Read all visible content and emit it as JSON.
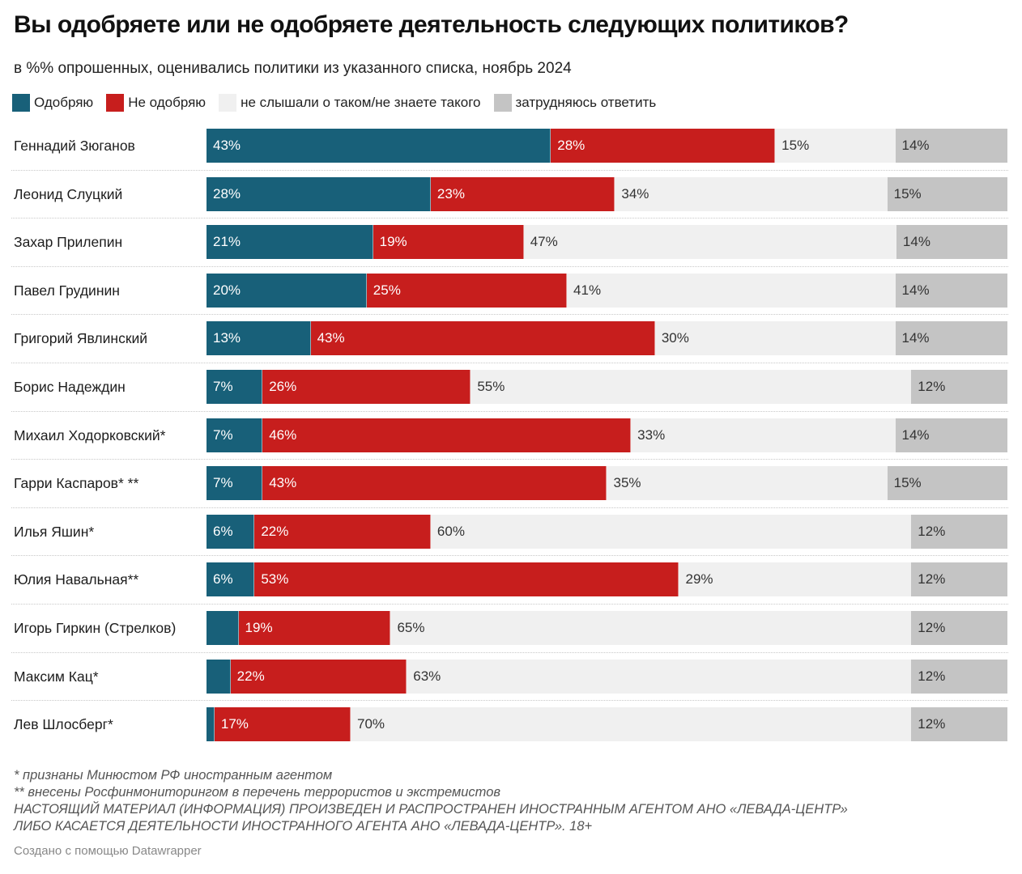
{
  "colors": {
    "approve": "#186079",
    "disapprove": "#c71e1d",
    "unknown": "#f0f0f0",
    "hard": "#c4c4c4"
  },
  "chart_data": {
    "type": "bar",
    "orientation": "horizontal",
    "stacked": true,
    "title": "Вы одобряете или не одобряете деятельность следующих политиков?",
    "subtitle": "в %% опрошенных, оценивались политики из указанного списка, ноябрь 2024",
    "unit": "%",
    "xlim": [
      0,
      100
    ],
    "legend_position": "top-left",
    "legend": [
      "Одобряю",
      "Не одобряю",
      "не слышали о таком/не знаете такого",
      "затрудняюсь ответить"
    ],
    "categories": [
      "Геннадий Зюганов",
      "Леонид Слуцкий",
      "Захар Прилепин",
      "Павел Грудинин",
      "Григорий Явлинский",
      "Борис Надеждин",
      "Михаил Ходорковский*",
      "Гарри Каспаров* **",
      "Илья Яшин*",
      "Юлия Навальная**",
      "Игорь Гиркин (Стрелков)",
      "Максим Кац*",
      "Лев Шлосберг*"
    ],
    "series": [
      {
        "name": "Одобряю",
        "key": "approve",
        "values": [
          43,
          28,
          21,
          20,
          13,
          7,
          7,
          7,
          6,
          6,
          4,
          3,
          1
        ],
        "labels_shown": [
          true,
          true,
          true,
          true,
          true,
          true,
          true,
          true,
          true,
          true,
          false,
          false,
          false
        ]
      },
      {
        "name": "Не одобряю",
        "key": "disapprove",
        "values": [
          28,
          23,
          19,
          25,
          43,
          26,
          46,
          43,
          22,
          53,
          19,
          22,
          17
        ],
        "labels_shown": [
          true,
          true,
          true,
          true,
          true,
          true,
          true,
          true,
          true,
          true,
          true,
          true,
          true
        ]
      },
      {
        "name": "не слышали о таком/не знаете такого",
        "key": "unknown",
        "values": [
          15,
          34,
          47,
          41,
          30,
          55,
          33,
          35,
          60,
          29,
          65,
          63,
          70
        ],
        "labels_shown": [
          true,
          true,
          true,
          true,
          true,
          true,
          true,
          true,
          true,
          true,
          true,
          true,
          true
        ]
      },
      {
        "name": "затрудняюсь ответить",
        "key": "hard",
        "values": [
          14,
          15,
          14,
          14,
          14,
          12,
          14,
          15,
          12,
          12,
          12,
          12,
          12
        ],
        "labels_shown": [
          true,
          true,
          true,
          true,
          true,
          true,
          true,
          true,
          true,
          true,
          true,
          true,
          true
        ]
      }
    ]
  },
  "footnotes": [
    "* признаны Минюстом РФ иностранным агентом",
    "** внесены Росфинмониторингом в перечень террористов и экстремистов",
    "НАСТОЯЩИЙ МАТЕРИАЛ (ИНФОРМАЦИЯ) ПРОИЗВЕДЕН И РАСПРОСТРАНЕН ИНОСТРАННЫМ АГЕНТОМ АНО «ЛЕВАДА-ЦЕНТР»",
    "ЛИБО КАСАЕТСЯ ДЕЯТЕЛЬНОСТИ ИНОСТРАННОГО АГЕНТА АНО «ЛЕВАДА-ЦЕНТР». 18+"
  ],
  "credit": "Создано с помощью Datawrapper"
}
